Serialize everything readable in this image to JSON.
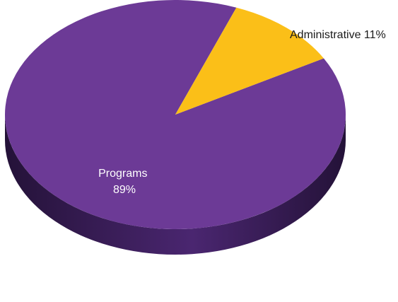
{
  "chart_data": {
    "type": "pie",
    "style": "3d",
    "slices": [
      {
        "label": "Programs",
        "value_label": "89%",
        "value": 89,
        "color": "#6c3a96"
      },
      {
        "label": "Administrative",
        "value_label": "11%",
        "value": 11,
        "color": "#fbbf18"
      }
    ],
    "labels": {
      "programs_line1": "Programs",
      "programs_line2": "89%",
      "administrative": "Administrative 11%"
    },
    "colors": {
      "programs": "#6c3a96",
      "programs_side_light": "#4a2670",
      "programs_side_dark": "#241238",
      "administrative": "#fbbf18",
      "label_on_purple": "#ffffff",
      "label_outside": "#1a1a1a"
    }
  }
}
